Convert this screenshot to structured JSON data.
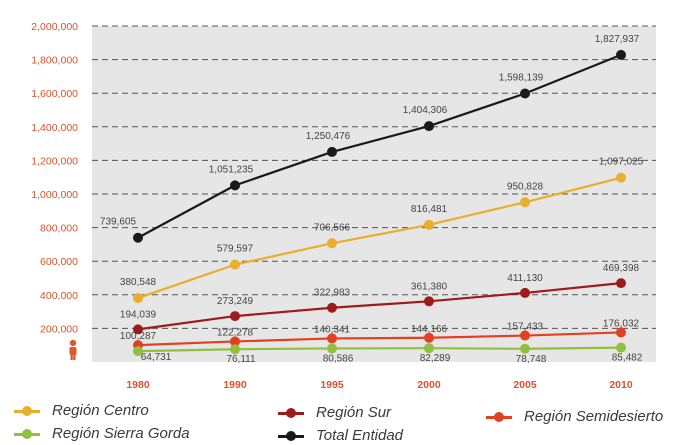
{
  "chart_data": {
    "type": "line",
    "categories": [
      "1980",
      "1990",
      "1995",
      "2000",
      "2005",
      "2010"
    ],
    "y_ticks": [
      "200,000",
      "400,000",
      "600,000",
      "800,000",
      "1,000,000",
      "1,200,000",
      "1,400,000",
      "1,600,000",
      "1,800,000",
      "2,000,000"
    ],
    "ylim": [
      0,
      2000000
    ],
    "grid": "dashed-horizontal",
    "legend_position": "bottom",
    "series": [
      {
        "name": "Total Entidad",
        "color": "#1a1a1a",
        "values": [
          739605,
          1051235,
          1250476,
          1404306,
          1598139,
          1827937
        ],
        "labels": [
          "739,605",
          "1,051,235",
          "1,250,476",
          "1,404,306",
          "1,598,139",
          "1,827,937"
        ]
      },
      {
        "name": "Región Centro",
        "color": "#e8ae2c",
        "values": [
          380548,
          579597,
          706566,
          816481,
          950828,
          1097025
        ],
        "labels": [
          "380,548",
          "579,597",
          "706,566",
          "816,481",
          "950,828",
          "1,097,025"
        ]
      },
      {
        "name": "Región Sur",
        "color": "#9e1b1b",
        "values": [
          194039,
          273249,
          322983,
          361380,
          411130,
          469398
        ],
        "labels": [
          "194,039",
          "273,249",
          "322,983",
          "361,380",
          "411,130",
          "469,398"
        ]
      },
      {
        "name": "Región Semidesierto",
        "color": "#e2401f",
        "values": [
          100287,
          122278,
          140341,
          144166,
          157433,
          176032
        ],
        "labels": [
          "100,287",
          "122,278",
          "140,341",
          "144,166",
          "157,433",
          "176,032"
        ]
      },
      {
        "name": "Región Sierra Gorda",
        "color": "#8fc13e",
        "values": [
          64731,
          76111,
          80586,
          82289,
          78748,
          85482
        ],
        "labels": [
          "64,731",
          "76,111",
          "80,586",
          "82,289",
          "78,748",
          "85,482"
        ]
      }
    ]
  },
  "legend": {
    "centro": "Región Centro",
    "sur": "Región Sur",
    "semidesierto": "Región Semidesierto",
    "sierra_gorda": "Región Sierra Gorda",
    "total": "Total Entidad"
  },
  "colors": {
    "plot_background": "#e6e6e6",
    "axis_text": "#d9532b",
    "person_icon": "#e0572b"
  },
  "icons": {
    "axis_marker": "person-icon"
  }
}
